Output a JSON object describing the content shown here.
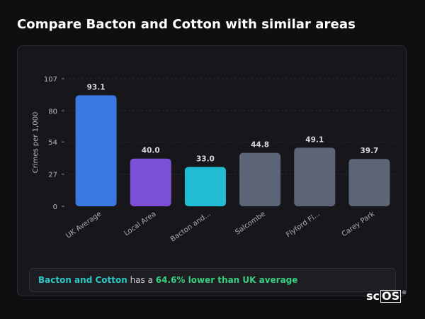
{
  "page": {
    "title": "Compare Bacton and Cotton with similar areas"
  },
  "summary": {
    "area": "Bacton and Cotton",
    "middle": " has a ",
    "difference": "64.6% lower than UK average"
  },
  "logo": {
    "prefix": "sc",
    "boxed": "OS",
    "mark": "®"
  },
  "chart_data": {
    "type": "bar",
    "title": "",
    "xlabel": "",
    "ylabel": "Crimes per 1,000",
    "ylim": [
      0,
      107
    ],
    "yticks": [
      0,
      27,
      54,
      80,
      107
    ],
    "grid": true,
    "categories": [
      "UK Average",
      "Local Area",
      "Bacton and...",
      "Salcombe",
      "Flyford Fl...",
      "Carey Park"
    ],
    "values": [
      93.1,
      40.0,
      33.0,
      44.8,
      49.1,
      39.7
    ],
    "value_labels": [
      "93.1",
      "40.0",
      "33.0",
      "44.8",
      "49.1",
      "39.7"
    ],
    "colors": [
      "#3b78e0",
      "#7b4fd6",
      "#21bcd1",
      "#5c6577",
      "#5c6577",
      "#5c6577"
    ]
  }
}
